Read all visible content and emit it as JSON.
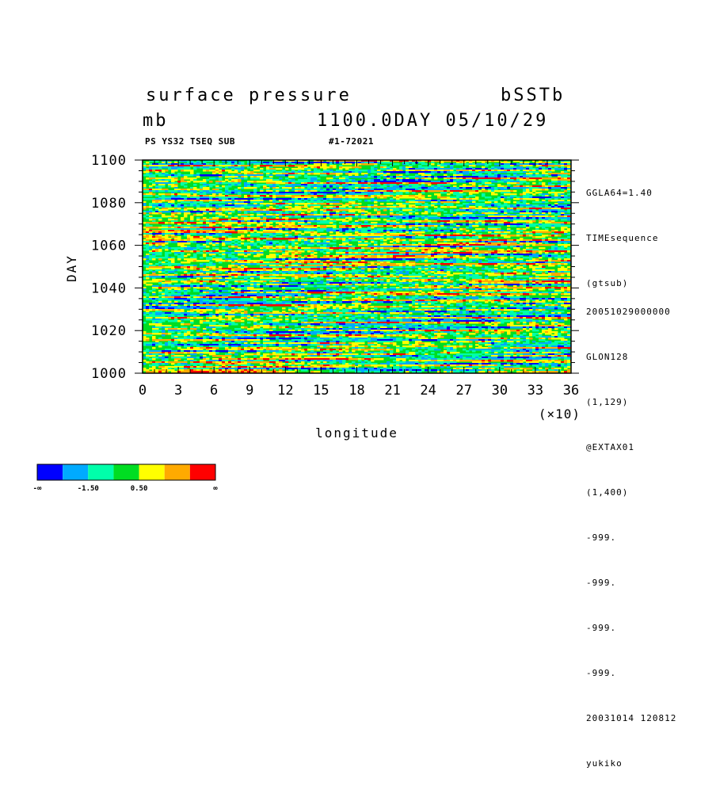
{
  "header": {
    "title": "surface pressure",
    "experiment": "bSSTb",
    "unit": "mb",
    "time_label": "1100.0DAY 05/10/29",
    "sub_left": "PS YS32 TSEQ SUB",
    "sub_right": "#1-72021"
  },
  "side_info": {
    "top": [
      "GGLA64=1.40",
      "TIMEsequence",
      "(gtsub)"
    ],
    "bottom": [
      "20051029000000",
      "GLON128",
      "(1,129)",
      "@EXTAX01",
      "(1,400)",
      "-999.",
      "-999.",
      "-999.",
      "-999.",
      "20031014 120812",
      "yukiko"
    ]
  },
  "chart_data": {
    "type": "heatmap",
    "title": "surface pressure",
    "xlabel": "longitude",
    "ylabel": "DAY",
    "x_scale_note": "(×10)",
    "xlim": [
      0,
      36
    ],
    "ylim": [
      1000,
      1100
    ],
    "x_ticks": [
      "0",
      "3",
      "6",
      "9",
      "12",
      "15",
      "18",
      "21",
      "24",
      "27",
      "30",
      "33",
      "36"
    ],
    "y_ticks": [
      "1000",
      "1020",
      "1040",
      "1060",
      "1080",
      "1100"
    ],
    "colorbar": {
      "colors": [
        "#0000ff",
        "#00aaff",
        "#00ffaa",
        "#00dd22",
        "#ffff00",
        "#ffaa00",
        "#ff0000"
      ],
      "labels": [
        "-∞",
        "-1.50",
        "0.50",
        "∞"
      ]
    }
  }
}
